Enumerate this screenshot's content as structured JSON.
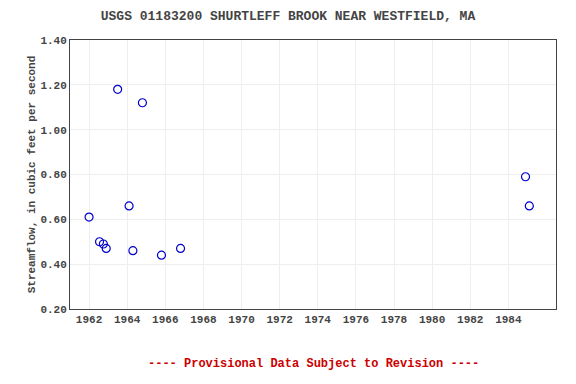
{
  "chart_data": {
    "type": "scatter",
    "title": "USGS 01183200 SHURTLEFF BROOK NEAR WESTFIELD, MA",
    "y_label": "Streamflow, in cubic feet per second",
    "annotations": [
      {
        "text": "---- Provisional Data Subject to Revision ----",
        "color": "#cc0000"
      }
    ],
    "x": [
      1962.0,
      1962.55,
      1962.75,
      1962.9,
      1963.5,
      1964.8,
      1964.1,
      1964.3,
      1965.8,
      1966.8,
      1984.9,
      1985.1
    ],
    "values": [
      0.61,
      0.5,
      0.49,
      0.47,
      1.18,
      1.12,
      0.66,
      0.46,
      0.44,
      0.47,
      0.79,
      0.66
    ],
    "color": "#0000cc",
    "marker": "circle-open",
    "xlim": [
      1961.0,
      1986.5
    ],
    "ylim": [
      0.2,
      1.4
    ],
    "xticks": [
      1962,
      1964,
      1966,
      1968,
      1970,
      1972,
      1974,
      1976,
      1978,
      1980,
      1982,
      1984
    ],
    "yticks": [
      {
        "value": 0.2,
        "label": "0.20"
      },
      {
        "value": 0.4,
        "label": "0.40"
      },
      {
        "value": 0.6,
        "label": "0.60"
      },
      {
        "value": 0.8,
        "label": "0.80"
      },
      {
        "value": 1.0,
        "label": "1.00"
      },
      {
        "value": 1.2,
        "label": "1.20"
      },
      {
        "value": 1.4,
        "label": "1.40"
      }
    ],
    "grid": true
  }
}
